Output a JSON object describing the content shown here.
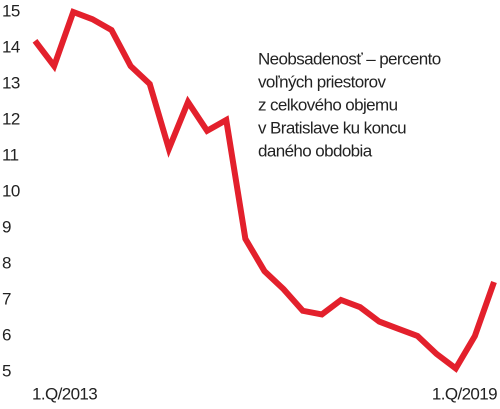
{
  "chart_data": {
    "type": "line",
    "annotation": [
      "Neobsadenosť – percento",
      "voľných priestorov",
      "z celkového objemu",
      "v Bratislave ku koncu",
      "daného obdobia"
    ],
    "categories": [
      "1.Q/2013",
      null,
      null,
      null,
      null,
      null,
      null,
      null,
      null,
      null,
      null,
      null,
      null,
      null,
      null,
      null,
      null,
      null,
      null,
      null,
      null,
      null,
      null,
      null,
      "1.Q/2019"
    ],
    "series": [
      {
        "color": "#e3202c",
        "values": [
          14.2,
          13.5,
          15.0,
          14.8,
          14.5,
          13.5,
          13.0,
          11.2,
          12.5,
          11.7,
          12.0,
          8.7,
          7.8,
          7.3,
          6.7,
          6.6,
          7.0,
          6.8,
          6.4,
          6.2,
          6.0,
          5.5,
          5.1,
          6.0,
          7.5
        ]
      }
    ],
    "ylim": [
      5,
      15
    ],
    "yticks": [
      5,
      6,
      7,
      8,
      9,
      10,
      11,
      12,
      13,
      14,
      15
    ],
    "grid": false
  }
}
